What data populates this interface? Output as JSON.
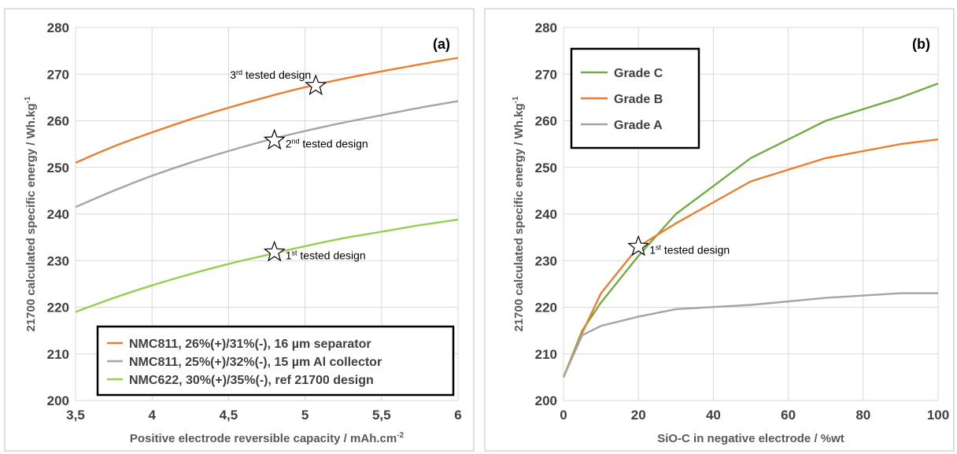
{
  "chart_data": [
    {
      "panel": "(a)",
      "type": "line",
      "xlabel": "Positive electrode reversible capacity / mAh.cm",
      "xlabel_sup": "-2",
      "ylabel": "21700 calculated specific energy / Wh.kg",
      "ylabel_sup": "-1",
      "xlim": [
        3.5,
        6
      ],
      "ylim": [
        200,
        280
      ],
      "xticks": [
        3.5,
        4,
        4.5,
        5,
        5.5,
        6
      ],
      "xtick_labels": [
        "3,5",
        "4",
        "4,5",
        "5",
        "5,5",
        "6"
      ],
      "yticks": [
        200,
        210,
        220,
        230,
        240,
        250,
        260,
        270,
        280
      ],
      "grid": true,
      "legend_position": "bottom-right",
      "series": [
        {
          "name": "NMC811, 26%(+)/31%(-), 16 µm separator",
          "color": "#ed7d31",
          "x": [
            3.5,
            3.75,
            4,
            4.25,
            4.5,
            4.75,
            5,
            5.25,
            5.5,
            5.75,
            6
          ],
          "y": [
            251,
            254.5,
            257.5,
            260.3,
            262.8,
            265.1,
            267.2,
            269,
            270.6,
            272.1,
            273.5
          ]
        },
        {
          "name": "NMC811, 25%(+)/32%(-), 15 µm Al collector",
          "color": "#a5a5a5",
          "x": [
            3.5,
            3.75,
            4,
            4.25,
            4.5,
            4.75,
            5,
            5.25,
            5.5,
            5.75,
            6
          ],
          "y": [
            241.5,
            245,
            248.2,
            251,
            253.5,
            255.8,
            257.8,
            259.6,
            261.2,
            262.8,
            264.2
          ]
        },
        {
          "name": "NMC622, 30%(+)/35%(-), ref 21700 design",
          "color": "#92d050",
          "x": [
            3.5,
            3.75,
            4,
            4.25,
            4.5,
            4.75,
            5,
            5.25,
            5.5,
            5.75,
            6
          ],
          "y": [
            219,
            222,
            224.7,
            227.1,
            229.3,
            231.2,
            233.1,
            234.8,
            236.2,
            237.6,
            238.8
          ]
        }
      ],
      "annotations": [
        {
          "x": 5.07,
          "y": 267.5,
          "text": "3",
          "sup": "rd",
          "rest": " tested design",
          "side": "left"
        },
        {
          "x": 4.8,
          "y": 255.8,
          "text": "2",
          "sup": "nd",
          "rest": " tested design",
          "side": "right"
        },
        {
          "x": 4.8,
          "y": 231.8,
          "text": "1",
          "sup": "st",
          "rest": " tested design",
          "side": "right"
        }
      ]
    },
    {
      "panel": "(b)",
      "type": "line",
      "xlabel": "SiO-C in negative electrode / %wt",
      "ylabel": "21700 calculated specific energy / Wh.kg",
      "ylabel_sup": "-1",
      "xlim": [
        0,
        100
      ],
      "ylim": [
        200,
        280
      ],
      "xticks": [
        0,
        20,
        40,
        60,
        80,
        100
      ],
      "xtick_labels": [
        "0",
        "20",
        "40",
        "60",
        "80",
        "100"
      ],
      "yticks": [
        200,
        210,
        220,
        230,
        240,
        250,
        260,
        270,
        280
      ],
      "grid": true,
      "legend_position": "top-left",
      "series": [
        {
          "name": "Grade C",
          "color": "#70ad47",
          "x": [
            0,
            5,
            10,
            20,
            30,
            50,
            70,
            90,
            100
          ],
          "y": [
            205,
            215,
            221,
            231,
            240,
            252,
            260,
            265,
            268
          ]
        },
        {
          "name": "Grade B",
          "color": "#ed7d31",
          "x": [
            0,
            5,
            10,
            20,
            30,
            50,
            70,
            90,
            100
          ],
          "y": [
            205,
            214.5,
            223,
            233,
            238,
            247,
            252,
            255,
            256
          ]
        },
        {
          "name": "Grade A",
          "color": "#a5a5a5",
          "x": [
            0,
            5,
            10,
            20,
            30,
            50,
            70,
            90,
            100
          ],
          "y": [
            205,
            214,
            216,
            218,
            219.6,
            220.5,
            222,
            223,
            223
          ]
        }
      ],
      "annotations": [
        {
          "x": 20,
          "y": 233,
          "text": "1",
          "sup": "st",
          "rest": " tested design",
          "side": "right"
        }
      ]
    }
  ]
}
